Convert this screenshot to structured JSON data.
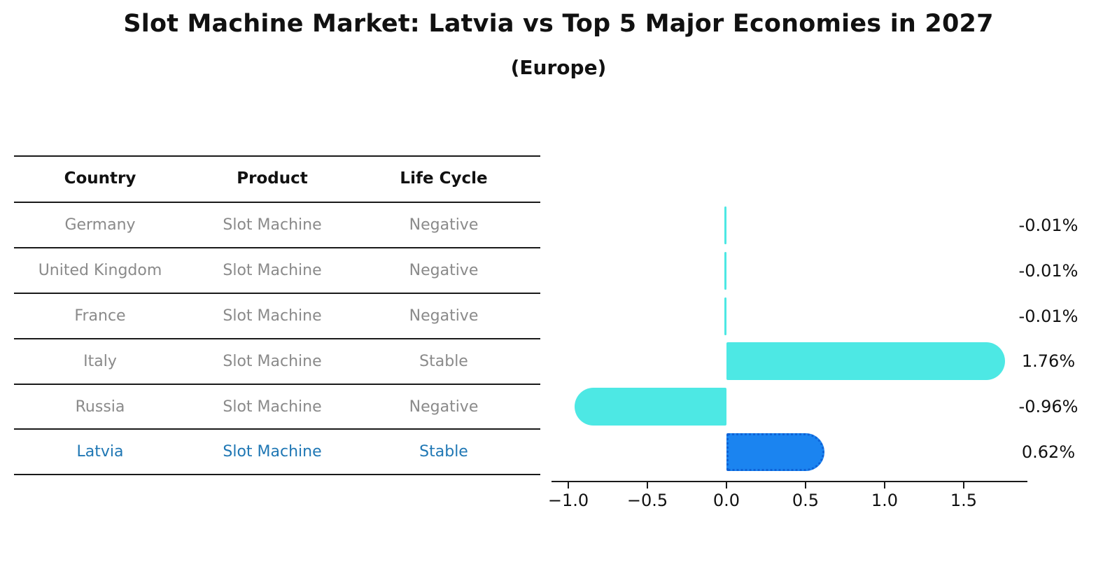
{
  "title": "Slot Machine Market: Latvia vs Top 5 Major Economies in 2027",
  "subtitle": "(Europe)",
  "table": {
    "headers": {
      "country": "Country",
      "product": "Product",
      "life_cycle": "Life Cycle"
    },
    "rows": [
      {
        "country": "Germany",
        "product": "Slot Machine",
        "life_cycle": "Negative",
        "highlight": false
      },
      {
        "country": "United Kingdom",
        "product": "Slot Machine",
        "life_cycle": "Negative",
        "highlight": false
      },
      {
        "country": "France",
        "product": "Slot Machine",
        "life_cycle": "Negative",
        "highlight": false
      },
      {
        "country": "Italy",
        "product": "Slot Machine",
        "life_cycle": "Stable",
        "highlight": false
      },
      {
        "country": "Russia",
        "product": "Slot Machine",
        "life_cycle": "Negative",
        "highlight": false
      },
      {
        "country": "Latvia",
        "product": "Slot Machine",
        "life_cycle": "Stable",
        "highlight": true
      }
    ]
  },
  "chart_data": {
    "type": "bar",
    "orientation": "horizontal",
    "title": "Slot Machine Market: Latvia vs Top 5 Major Economies in 2027",
    "subtitle": "(Europe)",
    "categories": [
      "Germany",
      "United Kingdom",
      "France",
      "Italy",
      "Russia",
      "Latvia"
    ],
    "values": [
      -0.01,
      -0.01,
      -0.01,
      1.76,
      -0.96,
      0.62
    ],
    "value_labels": [
      "-0.01%",
      "-0.01%",
      "-0.01%",
      "1.76%",
      "-0.96%",
      "0.62%"
    ],
    "x_tick_values": [
      -1.0,
      -0.5,
      0.0,
      0.5,
      1.0,
      1.5
    ],
    "x_tick_labels": [
      "−1.0",
      "−0.5",
      "0.0",
      "0.5",
      "1.0",
      "1.5"
    ],
    "xlim": [
      -1.11,
      1.9
    ],
    "grid": false,
    "legend": null,
    "highlight_category": "Latvia"
  },
  "colors": {
    "background": "#ffffff",
    "bar_default": "#4DE8E4",
    "bar_highlight": "#1B84F0",
    "bar_highlight_edge": "#0e62d6",
    "highlight_text": "#1f77b4",
    "row_text": "#8a8a8a",
    "header_text": "#111111",
    "value_text": "#111111"
  }
}
